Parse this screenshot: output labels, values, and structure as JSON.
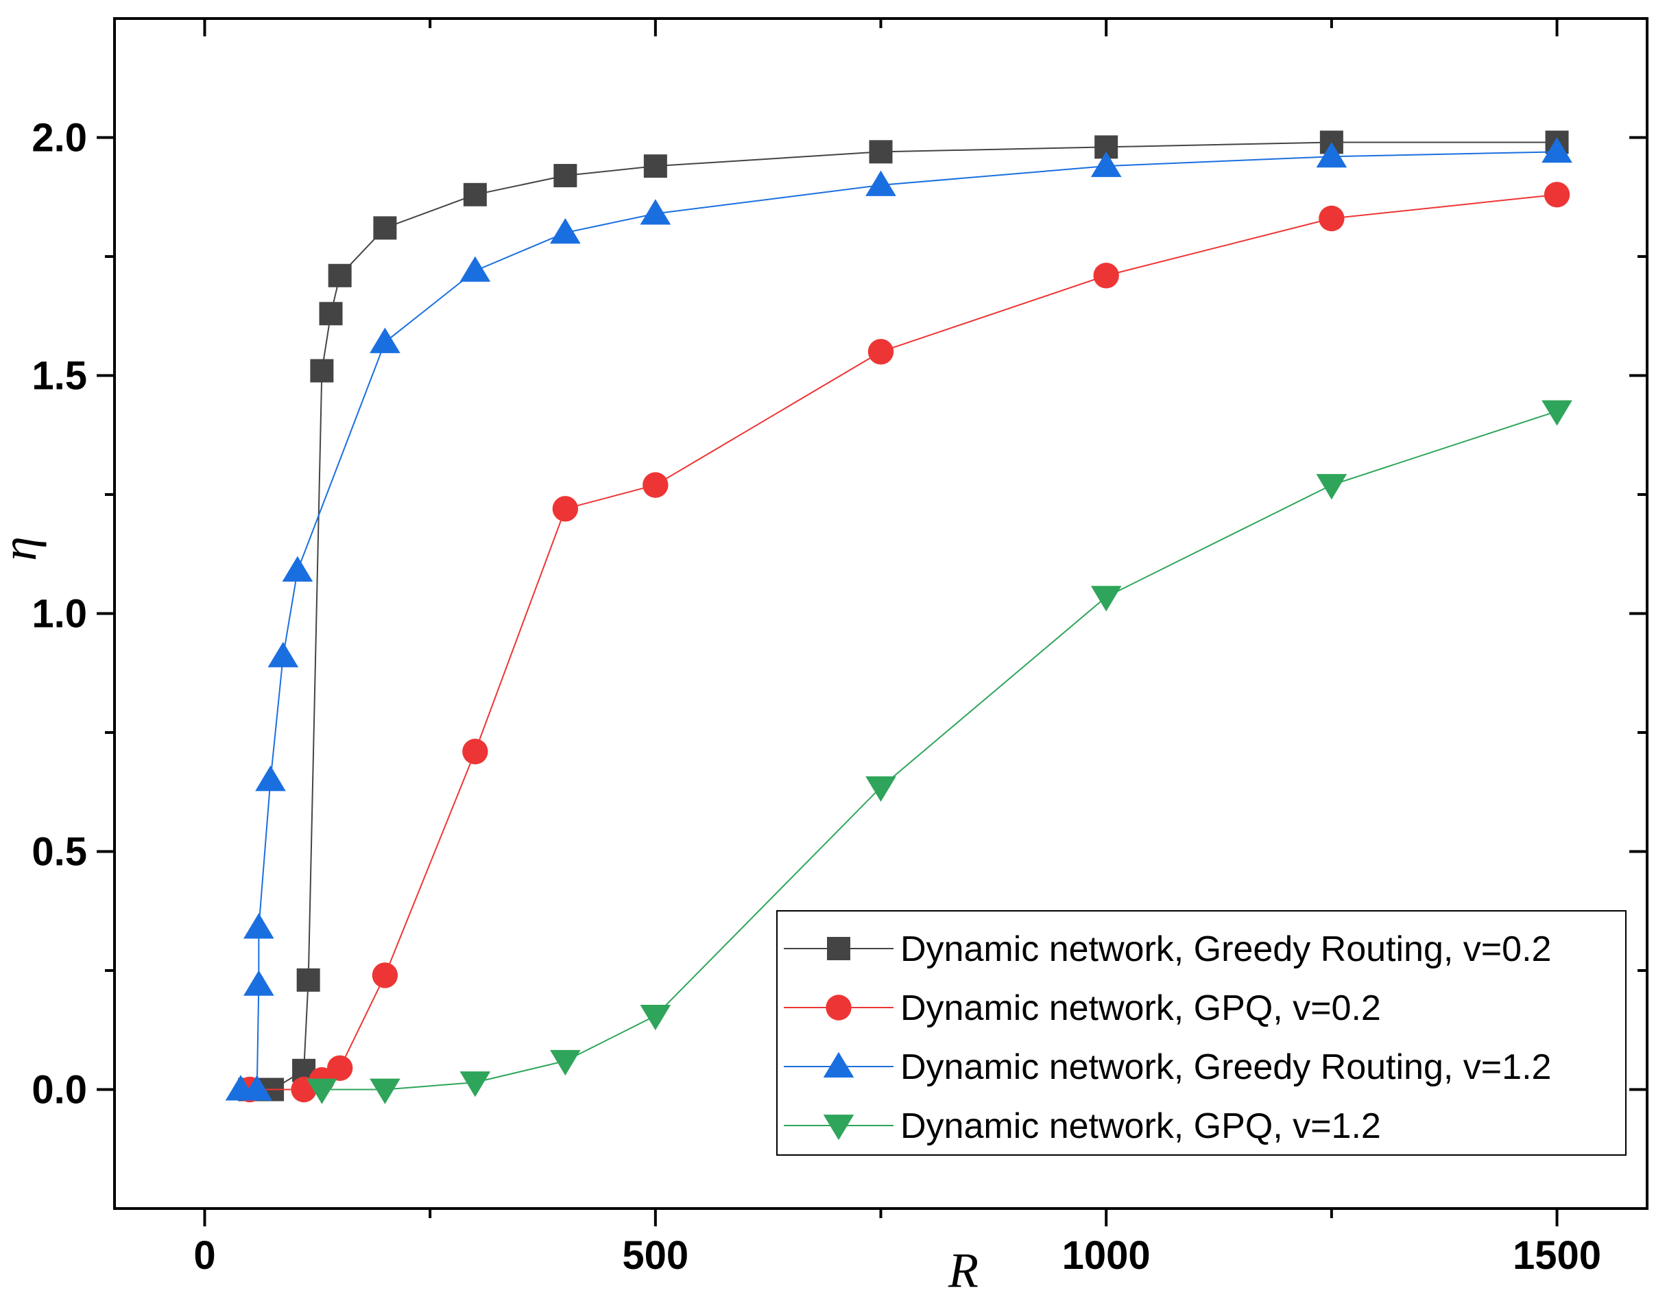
{
  "chart_data": {
    "type": "line",
    "title": "",
    "xlabel": "R",
    "ylabel": "η",
    "xlim": [
      -100,
      1600
    ],
    "ylim": [
      -0.25,
      2.25
    ],
    "x_ticks": [
      0,
      500,
      1000,
      1500
    ],
    "x_tick_labels": [
      "0",
      "500",
      "1000",
      "1500"
    ],
    "y_ticks": [
      0.0,
      0.5,
      1.0,
      1.5,
      2.0
    ],
    "y_tick_labels": [
      "0.0",
      "0.5",
      "1.0",
      "1.5",
      "2.0"
    ],
    "grid": false,
    "legend_position": "bottom-right",
    "series": [
      {
        "name": "Dynamic network, Greedy Routing, v=0.2",
        "color": "#444444",
        "marker": "square",
        "x": [
          50,
          75,
          110,
          115,
          130,
          140,
          150,
          200,
          300,
          400,
          500,
          750,
          1000,
          1250,
          1500
        ],
        "y": [
          0.0,
          0.0,
          0.04,
          0.23,
          1.51,
          1.63,
          1.71,
          1.81,
          1.88,
          1.92,
          1.94,
          1.97,
          1.98,
          1.99,
          1.99
        ]
      },
      {
        "name": "Dynamic network, GPQ, v=0.2",
        "color": "#ee3535",
        "marker": "circle",
        "x": [
          50,
          110,
          130,
          150,
          200,
          300,
          400,
          500,
          750,
          1000,
          1250,
          1500
        ],
        "y": [
          0.0,
          0.0,
          0.02,
          0.045,
          0.24,
          0.71,
          1.22,
          1.27,
          1.55,
          1.71,
          1.83,
          1.88
        ]
      },
      {
        "name": "Dynamic network, Greedy Routing, v=1.2",
        "color": "#1a6fe0",
        "marker": "triangle-up",
        "x": [
          40,
          58,
          60,
          60,
          73,
          87,
          103,
          200,
          300,
          400,
          500,
          750,
          1000,
          1250,
          1500
        ],
        "y": [
          0.0,
          0.0,
          0.22,
          0.34,
          0.65,
          0.91,
          1.09,
          1.57,
          1.72,
          1.8,
          1.84,
          1.9,
          1.94,
          1.96,
          1.97
        ]
      },
      {
        "name": "Dynamic network, GPQ, v=1.2",
        "color": "#2ea55a",
        "marker": "triangle-down",
        "x": [
          130,
          200,
          300,
          400,
          500,
          750,
          1000,
          1250,
          1500
        ],
        "y": [
          0.0,
          0.0,
          0.015,
          0.06,
          0.155,
          0.635,
          1.035,
          1.27,
          1.425
        ]
      }
    ]
  }
}
